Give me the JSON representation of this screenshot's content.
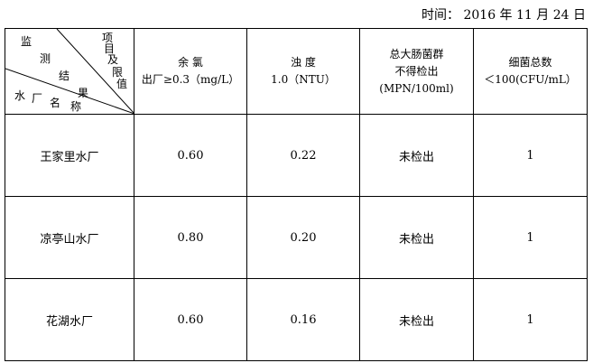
{
  "date_line": "时间： 2016 年 11 月 24 日",
  "corner": {
    "top_right": [
      "项",
      "目",
      "及",
      "限",
      "值"
    ],
    "middle": [
      "监",
      "测",
      "结",
      "果"
    ],
    "bottom_left": [
      "水",
      "厂",
      "名",
      "称"
    ]
  },
  "headers": [
    {
      "line1": "余 氯",
      "line2": "出厂≥0.3（mg/L）",
      "line3": ""
    },
    {
      "line1": "浊 度",
      "line2": "1.0（NTU）",
      "line3": ""
    },
    {
      "line1": "总大肠菌群",
      "line2": "不得检出",
      "line3": "(MPN/100ml)"
    },
    {
      "line1": "细菌总数",
      "line2": "＜100(CFU/mL）",
      "line3": ""
    }
  ],
  "rows": [
    {
      "plant": "王家里水厂",
      "chlorine": "0.60",
      "turbidity": "0.22",
      "coliform": "未检出",
      "bacteria": "1"
    },
    {
      "plant": "凉亭山水厂",
      "chlorine": "0.80",
      "turbidity": "0.20",
      "coliform": "未检出",
      "bacteria": "1"
    },
    {
      "plant": "花湖水厂",
      "chlorine": "0.60",
      "turbidity": "0.16",
      "coliform": "未检出",
      "bacteria": "1"
    }
  ]
}
